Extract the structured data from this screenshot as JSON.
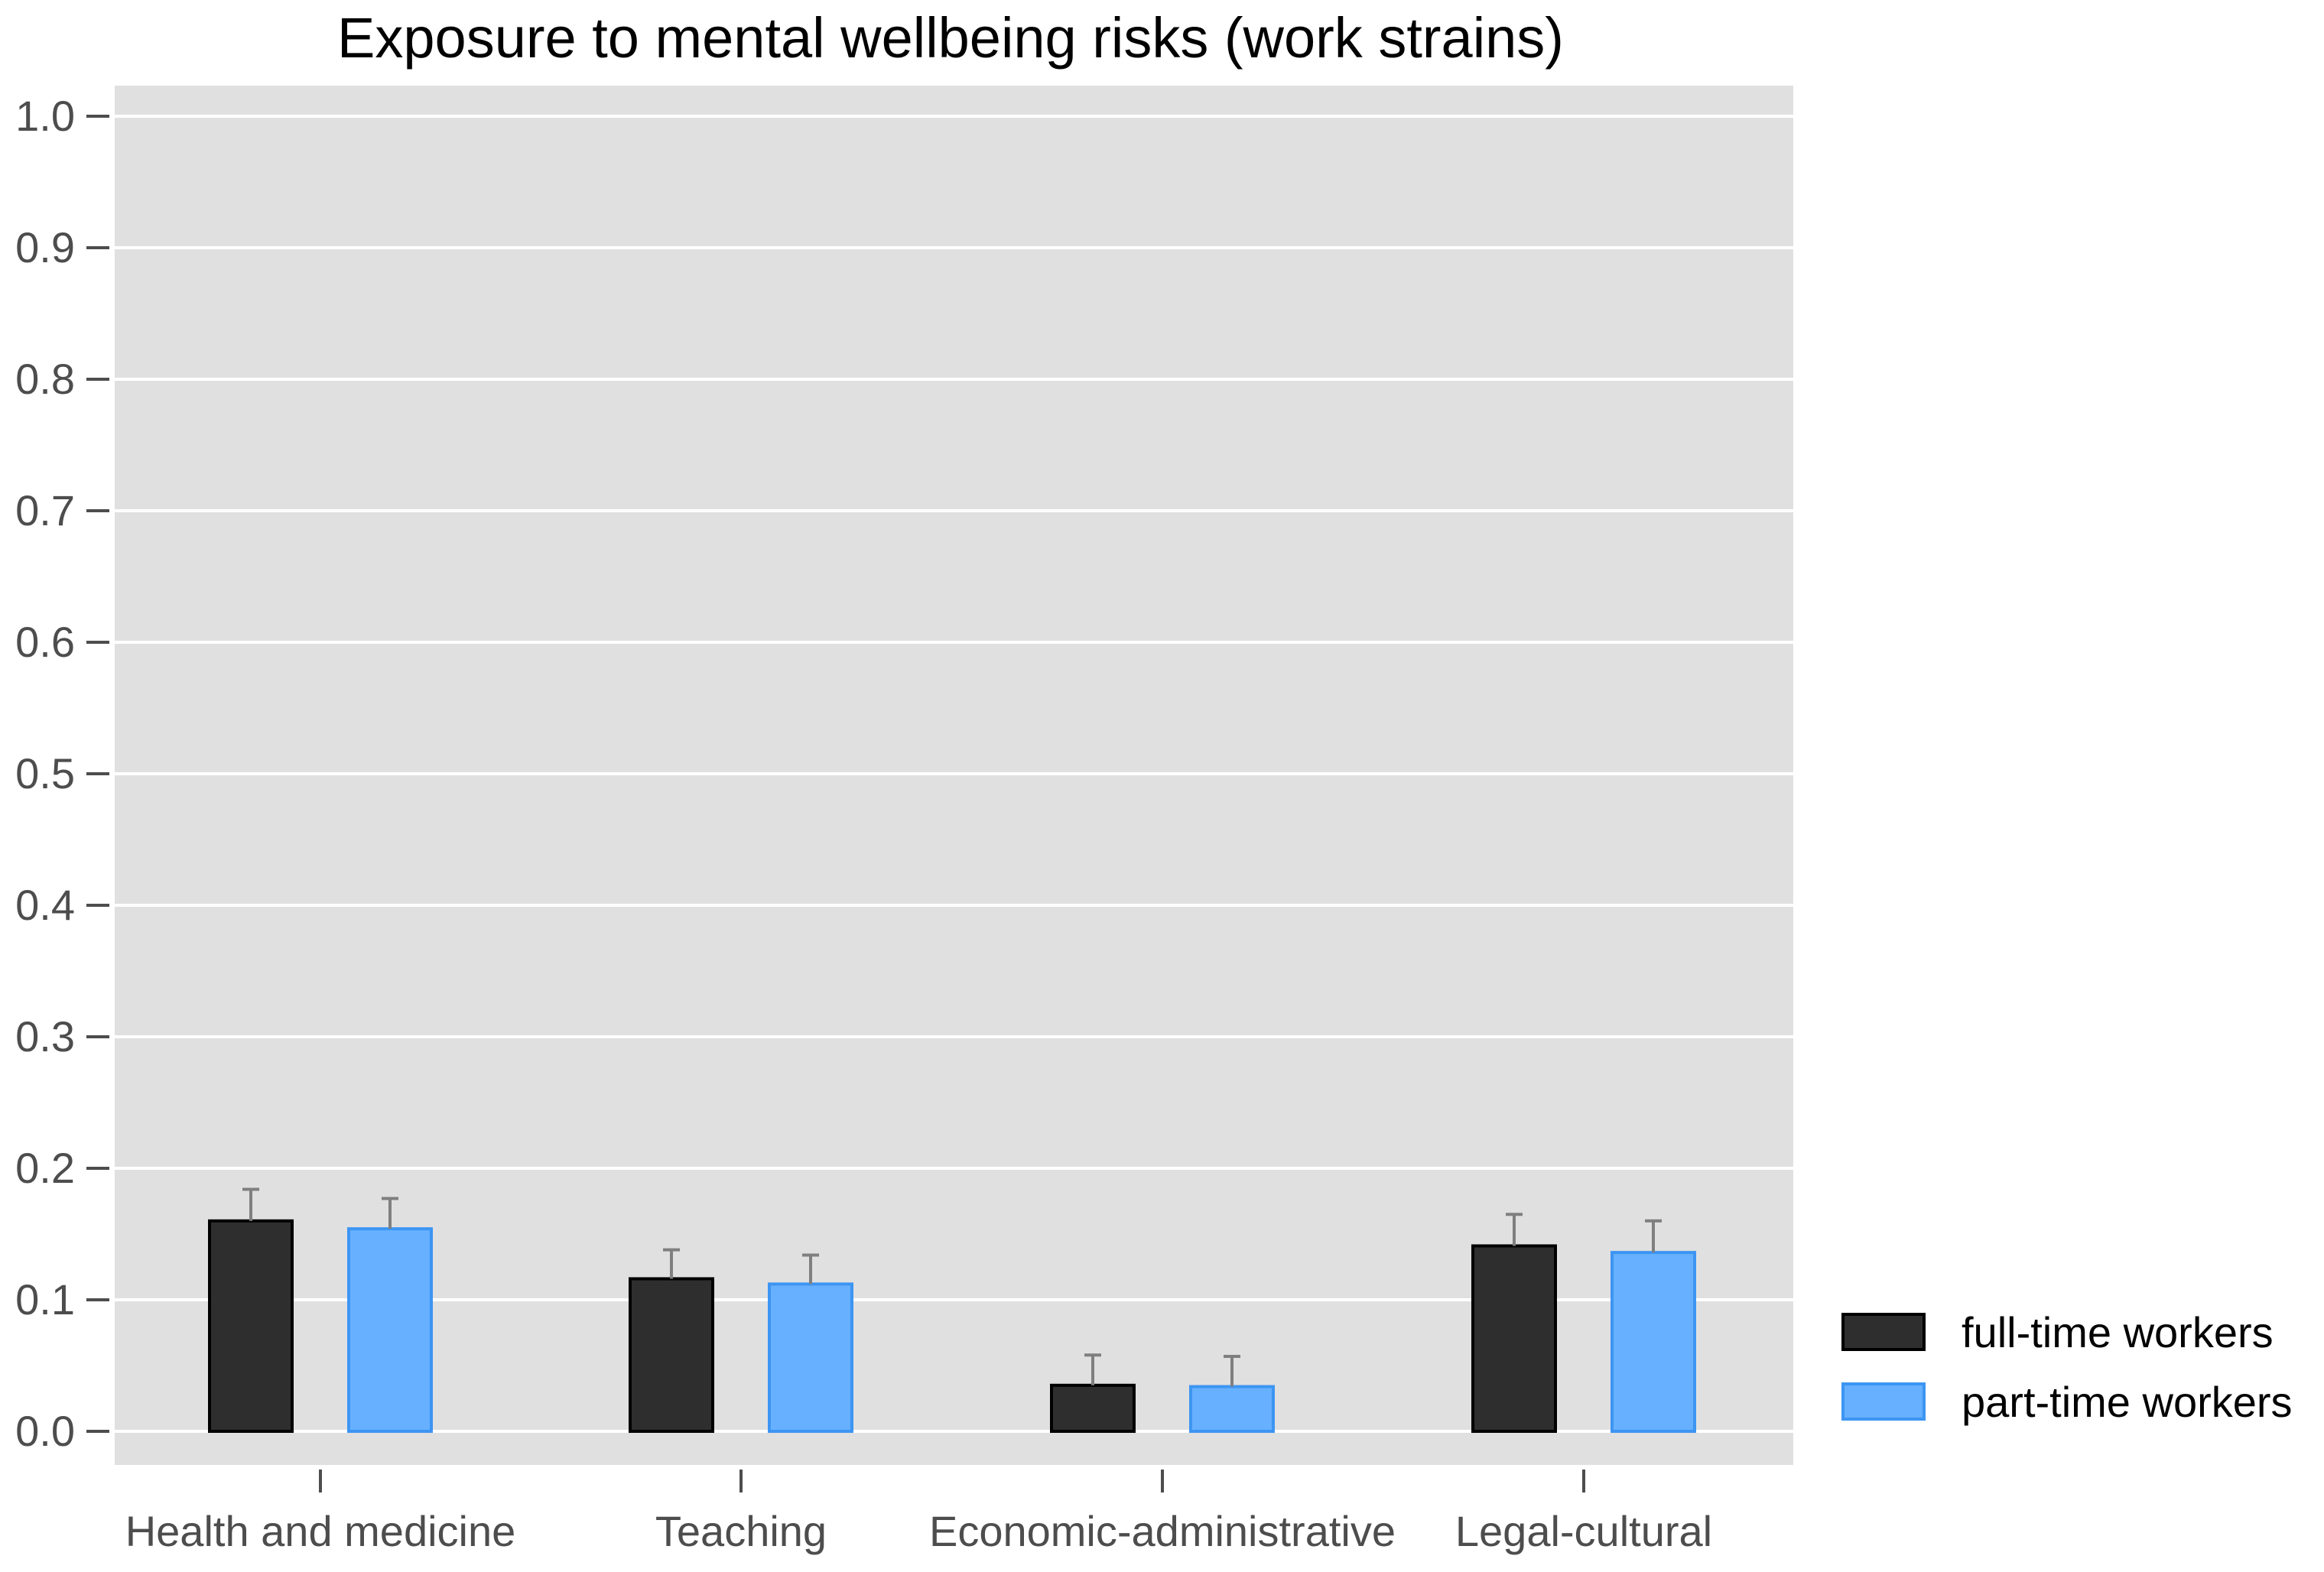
{
  "chart_data": {
    "type": "bar",
    "title": "Exposure to mental wellbeing risks (work strains)",
    "xlabel": "",
    "ylabel": "",
    "ylim": [
      0.0,
      1.0
    ],
    "y_ticks": [
      "0.0",
      "0.1",
      "0.2",
      "0.3",
      "0.4",
      "0.5",
      "0.6",
      "0.7",
      "0.8",
      "0.9",
      "1.0"
    ],
    "grid": true,
    "legend_position": "bottom-right",
    "categories": [
      "Health and medicine",
      "Teaching",
      "Economic-administrative",
      "Legal-cultural"
    ],
    "series": [
      {
        "name": "full-time workers",
        "color": "#2e2e2e",
        "stroke": "#000000",
        "values": [
          0.16,
          0.116,
          0.035,
          0.141
        ],
        "error_upper": [
          0.184,
          0.138,
          0.058,
          0.165
        ]
      },
      {
        "name": "part-time workers",
        "color": "#66b0ff",
        "stroke": "#3d95f2",
        "values": [
          0.154,
          0.112,
          0.034,
          0.136
        ],
        "error_upper": [
          0.177,
          0.134,
          0.057,
          0.16
        ]
      }
    ],
    "colors": {
      "panel": "#e0e0e0",
      "grid": "#ffffff",
      "axis_tick": "#4d4d4d",
      "error_bar": "#7f7f7f"
    }
  }
}
